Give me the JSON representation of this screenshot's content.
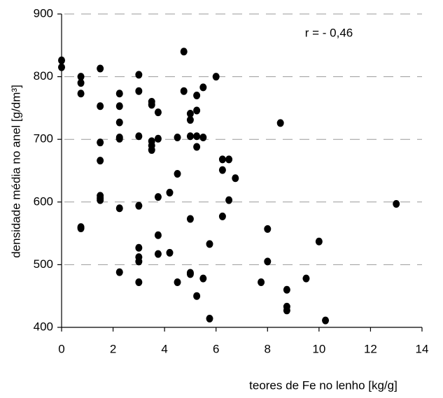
{
  "chart_data": {
    "type": "scatter",
    "annotation": "r = - 0,46",
    "x_label": "teores de Fe no lenho [kg/g]",
    "y_label": "densidade média no anel [g/dm³]",
    "xlim": [
      0,
      14
    ],
    "xticks": [
      0,
      2,
      4,
      6,
      8,
      10,
      12,
      14
    ],
    "ylim": [
      400,
      900
    ],
    "yticks": [
      400,
      500,
      600,
      700,
      800,
      900
    ],
    "grid": true,
    "series": [
      {
        "color": "#000000",
        "x": [
          0,
          0,
          0.75,
          0.75,
          0.75,
          0.75,
          0.75,
          1.5,
          1.5,
          1.5,
          1.5,
          1.5,
          1.5,
          1.5,
          2.25,
          2.25,
          2.25,
          2.25,
          2.25,
          2.25,
          2.25,
          3,
          3,
          3,
          3,
          3,
          3,
          3,
          3,
          3.5,
          3.5,
          3.5,
          3.5,
          3.5,
          3.75,
          3.75,
          3.75,
          3.75,
          3.75,
          4.2,
          4.2,
          4.5,
          4.5,
          4.5,
          4.75,
          4.75,
          5,
          5,
          5,
          5,
          5,
          5,
          5.25,
          5.25,
          5.25,
          5.25,
          5.25,
          5.5,
          5.5,
          5.5,
          5.75,
          5.75,
          6,
          6.25,
          6.25,
          6.25,
          6.5,
          6.5,
          6.75,
          7.75,
          8,
          8,
          8.5,
          8.75,
          8.75,
          8.75,
          9.5,
          10,
          10.25,
          13
        ],
        "values": [
          826,
          815,
          800,
          790,
          773,
          560,
          558,
          813,
          753,
          695,
          666,
          610,
          606,
          603,
          773,
          753,
          727,
          703,
          701,
          590,
          488,
          803,
          777,
          705,
          594,
          527,
          512,
          505,
          472,
          760,
          755,
          697,
          690,
          683,
          743,
          701,
          608,
          547,
          517,
          615,
          519,
          703,
          645,
          472,
          840,
          777,
          741,
          731,
          705,
          573,
          487,
          485,
          770,
          746,
          705,
          688,
          450,
          783,
          703,
          478,
          533,
          414,
          800,
          668,
          651,
          577,
          668,
          603,
          638,
          472,
          557,
          505,
          726,
          460,
          433,
          427,
          478,
          537,
          411,
          597
        ]
      }
    ]
  }
}
